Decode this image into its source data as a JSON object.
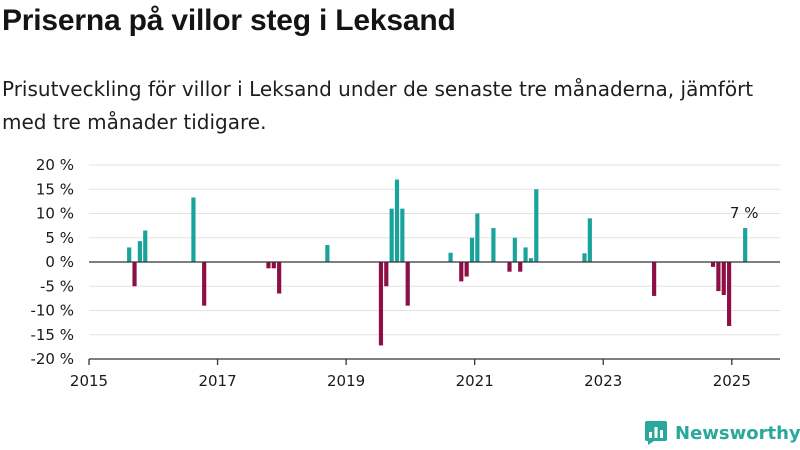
{
  "header": {
    "title": "Priserna på villor steg i Leksand",
    "subtitle": "Prisutveckling för villor i Leksand under de senaste tre månaderna, jämfört med tre månader tidigare."
  },
  "brand": {
    "name": "Newsworthy",
    "icon": "newsworthy-logo-icon"
  },
  "colors": {
    "positive": "#1aa39a",
    "negative": "#8e0f45",
    "grid": "#e3e3e3",
    "axis": "#333333",
    "text": "#1a1a1a"
  },
  "chart_data": {
    "type": "bar",
    "xlim": [
      "2015-01-01",
      "2025-10-01"
    ],
    "ylim": [
      -20,
      20
    ],
    "y_ticks": [
      -20,
      -15,
      -10,
      -5,
      0,
      5,
      10,
      15,
      20
    ],
    "y_tick_labels": [
      "-20 %",
      "-15 %",
      "-10 %",
      "-5 %",
      "0 %",
      "5 %",
      "10 %",
      "15 %",
      "20 %"
    ],
    "x_ticks": [
      "2015-01-01",
      "2017-01-01",
      "2019-01-01",
      "2021-01-01",
      "2023-01-01",
      "2025-01-01"
    ],
    "x_tick_labels": [
      "2015",
      "2017",
      "2019",
      "2021",
      "2023",
      "2025"
    ],
    "xlabel": "",
    "ylabel": "",
    "grid": true,
    "annotation": {
      "x": "2025-03",
      "text": "7 %"
    },
    "series": [
      {
        "x": [
          "2015-08",
          "2015-09",
          "2015-10",
          "2015-11",
          "2016-08",
          "2016-10",
          "2017-10",
          "2017-11",
          "2017-12",
          "2018-09",
          "2019-07",
          "2019-08",
          "2019-09",
          "2019-10",
          "2019-11",
          "2019-12",
          "2020-08",
          "2020-10",
          "2020-11",
          "2020-12",
          "2021-01",
          "2021-04",
          "2021-07",
          "2021-08",
          "2021-09",
          "2021-10",
          "2021-11",
          "2021-12",
          "2022-09",
          "2022-10",
          "2023-10",
          "2024-09",
          "2024-10",
          "2024-11",
          "2024-12",
          "2025-03"
        ],
        "values": [
          3,
          -5,
          4.3,
          6.5,
          13.3,
          -9,
          -1.3,
          -1.3,
          -6.5,
          3.5,
          -17.2,
          -5,
          11,
          17,
          11,
          -9,
          1.9,
          -4,
          -3,
          5,
          10,
          7,
          -2,
          5,
          -2,
          3,
          0.8,
          15,
          1.8,
          9,
          -7,
          -1,
          -6,
          -6.8,
          -13.2,
          7
        ]
      }
    ]
  }
}
